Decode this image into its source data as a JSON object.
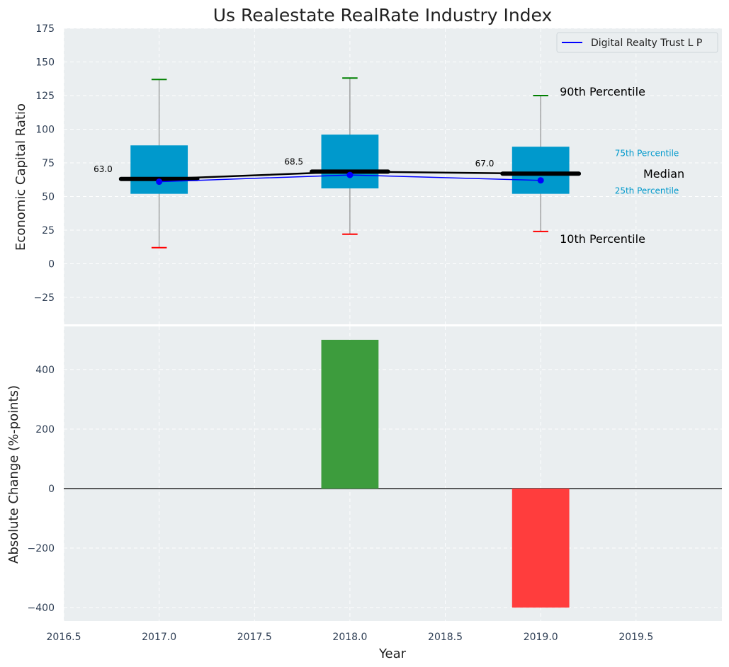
{
  "chart_data": [
    {
      "type": "box",
      "title": "Us Realestate RealRate Industry Index",
      "ylabel": "Economic Capital Ratio",
      "xlim": [
        2016.5,
        2019.95
      ],
      "ylim": [
        -45,
        175
      ],
      "yticks": [
        -25,
        0,
        25,
        50,
        75,
        100,
        125,
        150,
        175
      ],
      "grid": true,
      "legend": {
        "position": "top-right",
        "entries": [
          "Digital Realty Trust L P"
        ]
      },
      "years": [
        2017,
        2018,
        2019
      ],
      "boxes": [
        {
          "year": 2017,
          "p10": 12,
          "p25": 52,
          "median": 63.0,
          "p75": 88,
          "p90": 137
        },
        {
          "year": 2018,
          "p10": 22,
          "p25": 56,
          "median": 68.5,
          "p75": 96,
          "p90": 138
        },
        {
          "year": 2019,
          "p10": 24,
          "p25": 52,
          "median": 67.0,
          "p75": 87,
          "p90": 125
        }
      ],
      "median_labels": [
        "63.0",
        "68.5",
        "67.0"
      ],
      "series": [
        {
          "name": "Digital Realty Trust L P",
          "color": "#0000ff",
          "values": [
            61,
            66,
            62
          ]
        }
      ],
      "annotations": {
        "p90": "90th Percentile",
        "p75": "75th Percentile",
        "median": "Median",
        "p25": "25th Percentile",
        "p10": "10th Percentile"
      },
      "colors": {
        "box": "#0099cc",
        "median": "#000000",
        "p90": "#008000",
        "p10": "#ff0000",
        "series": "#0000ff"
      }
    },
    {
      "type": "bar",
      "ylabel": "Absolute Change (%-points)",
      "xlabel": "Year",
      "xlim": [
        2016.5,
        2019.95
      ],
      "ylim": [
        -445,
        545
      ],
      "yticks": [
        -400,
        -200,
        0,
        200,
        400
      ],
      "xticks": [
        "2016.5",
        "2017.0",
        "2017.5",
        "2018.0",
        "2018.5",
        "2019.0",
        "2019.5"
      ],
      "grid": true,
      "x": [
        2018,
        2019
      ],
      "values": [
        500,
        -400
      ],
      "colors": {
        "positive": "#3d9c3d",
        "negative": "#ff3d3d"
      }
    }
  ]
}
